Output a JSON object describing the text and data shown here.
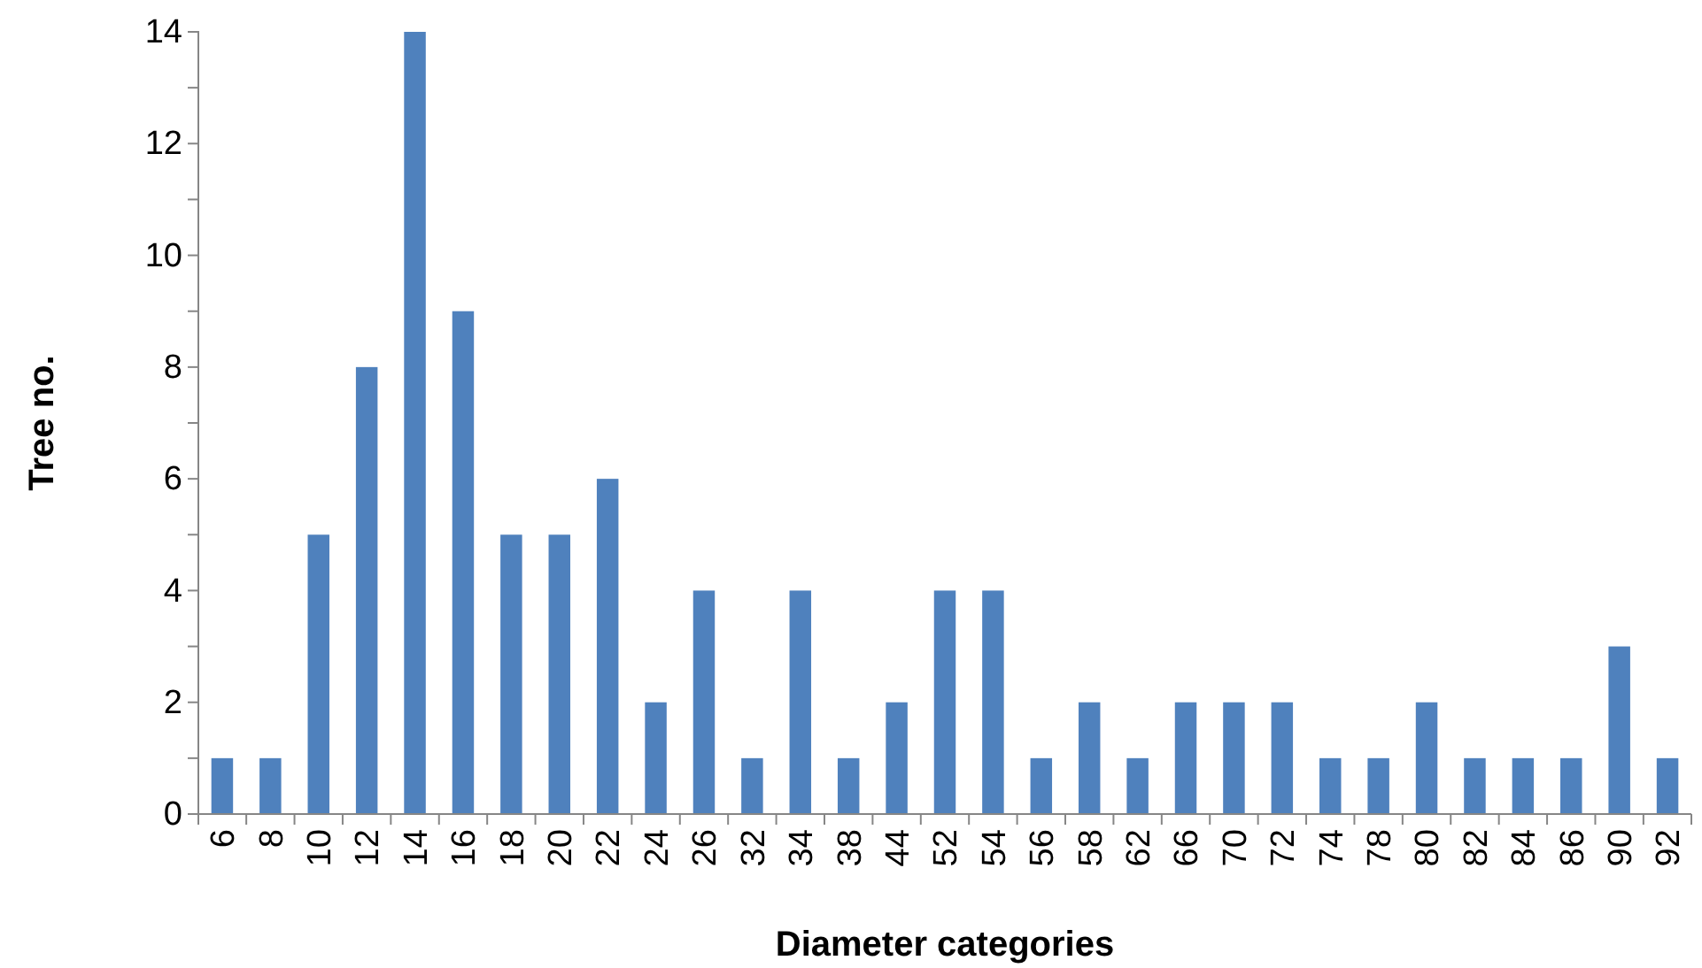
{
  "chart_data": {
    "type": "bar",
    "xlabel": "Diameter categories",
    "ylabel": "Tree no.",
    "categories": [
      "6",
      "8",
      "10",
      "12",
      "14",
      "16",
      "18",
      "20",
      "22",
      "24",
      "26",
      "32",
      "34",
      "38",
      "44",
      "52",
      "54",
      "56",
      "58",
      "62",
      "66",
      "70",
      "72",
      "74",
      "78",
      "80",
      "82",
      "84",
      "86",
      "90",
      "92"
    ],
    "values": [
      1,
      1,
      5,
      8,
      14,
      9,
      5,
      5,
      6,
      2,
      4,
      1,
      4,
      1,
      2,
      4,
      4,
      1,
      2,
      1,
      2,
      2,
      2,
      1,
      1,
      2,
      1,
      1,
      1,
      3,
      1
    ],
    "color": "#4f81bd",
    "ylim": [
      0,
      14
    ],
    "yticks": [
      0,
      {
        "value": 1,
        "label": null
      },
      2,
      {
        "value": 3,
        "label": null
      },
      4,
      {
        "value": 5,
        "label": null
      },
      6,
      {
        "value": 7,
        "label": null
      },
      8,
      {
        "value": 9,
        "label": null
      },
      10,
      {
        "value": 11,
        "label": null
      },
      12,
      {
        "value": 13,
        "label": null
      },
      14
    ],
    "grid": false
  }
}
